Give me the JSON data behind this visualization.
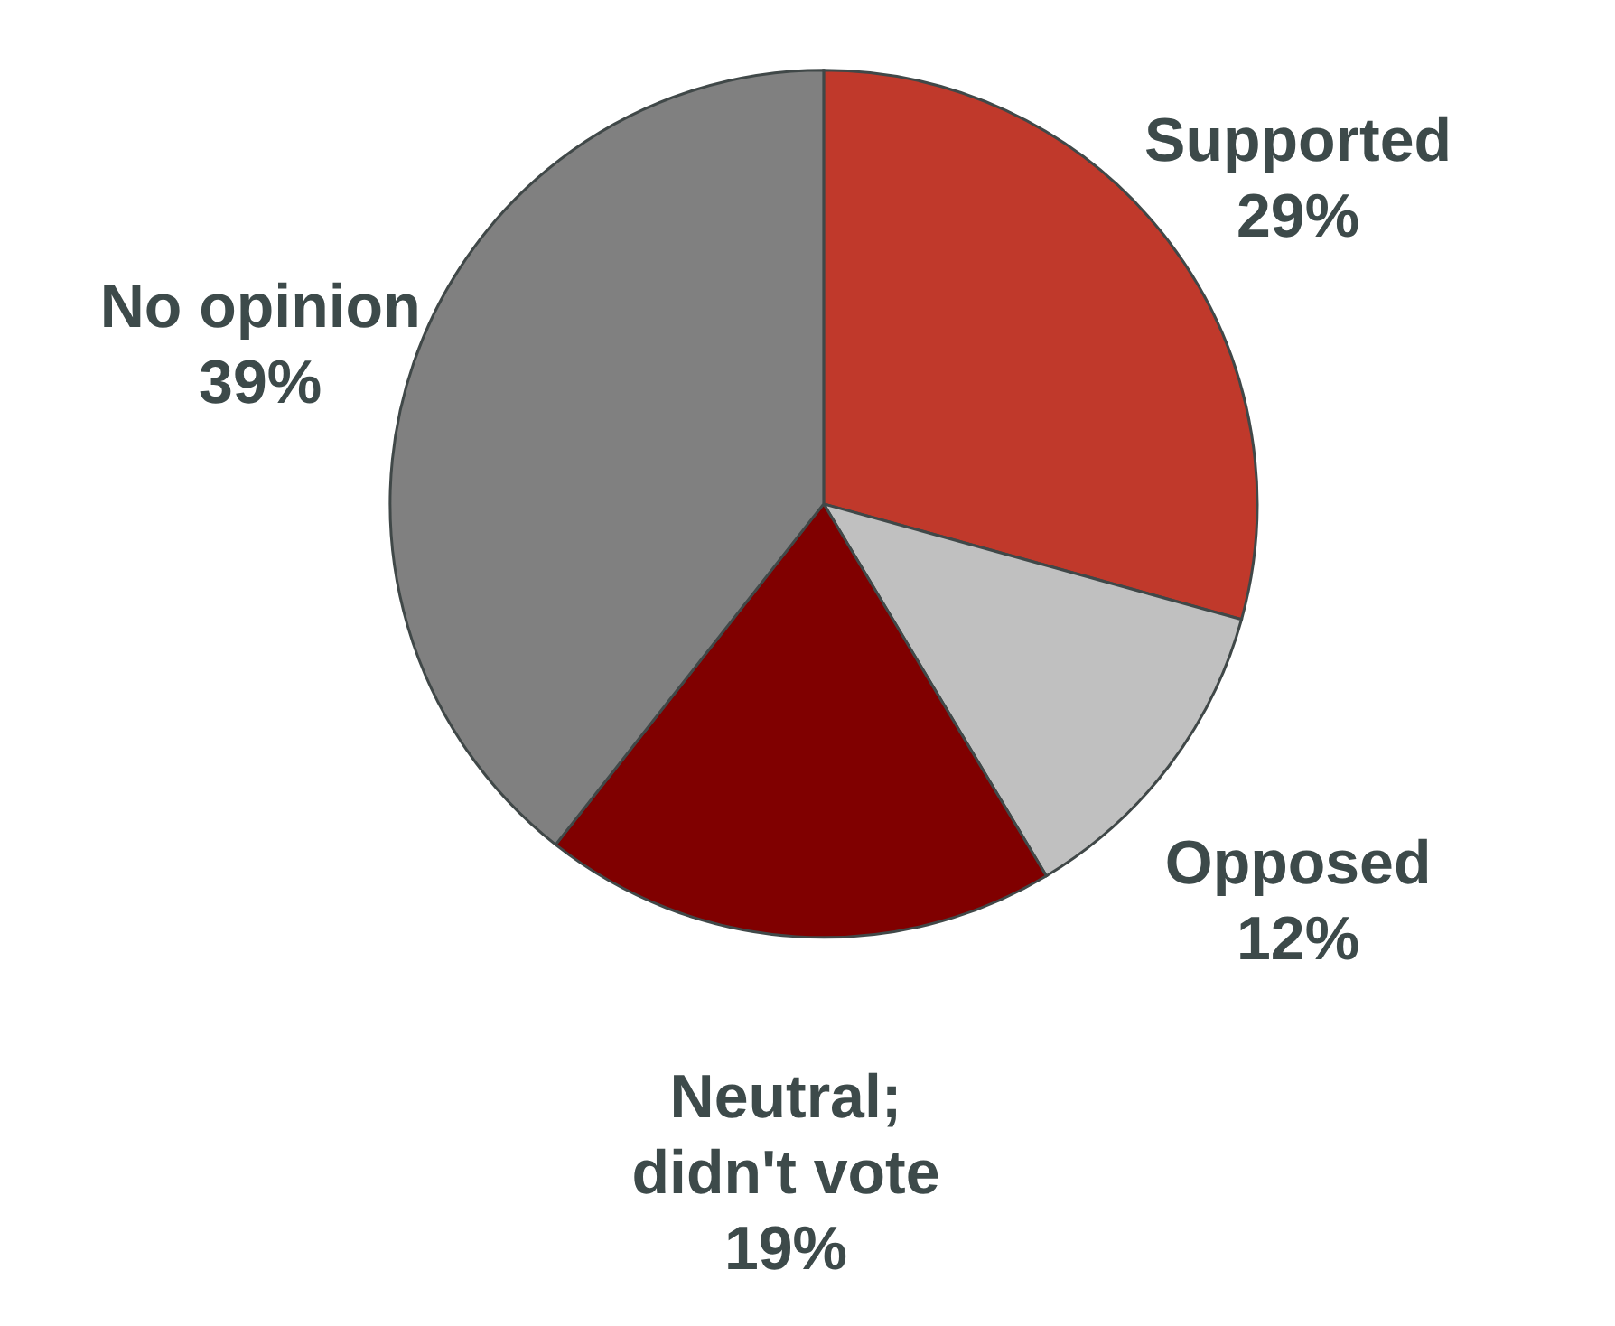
{
  "chart_data": {
    "type": "pie",
    "categories": [
      "Supported",
      "Opposed",
      "Neutral;\ndidn't vote",
      "No opinion"
    ],
    "values": [
      29,
      12,
      19,
      39
    ],
    "colors": [
      "#c0392b",
      "#c0c0c0",
      "#800000",
      "#808080"
    ],
    "value_labels": [
      "29%",
      "12%",
      "19%",
      "39%"
    ]
  }
}
